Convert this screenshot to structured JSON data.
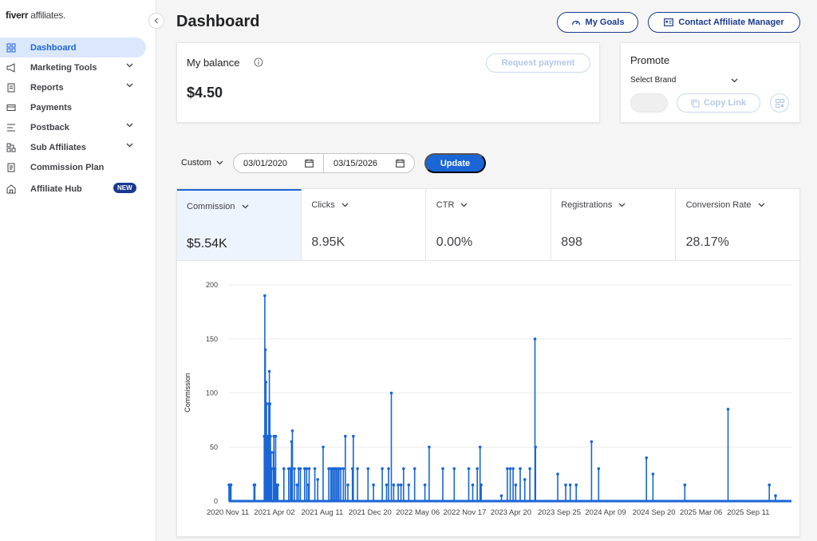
{
  "brand": {
    "name": "fiverr",
    "suffix": " affiliates."
  },
  "sidebar": {
    "items": [
      {
        "label": "Dashboard",
        "icon": "dashboard-icon",
        "active": true,
        "expandable": false
      },
      {
        "label": "Marketing Tools",
        "icon": "megaphone-icon",
        "expandable": true
      },
      {
        "label": "Reports",
        "icon": "report-icon",
        "expandable": true
      },
      {
        "label": "Payments",
        "icon": "payment-icon",
        "expandable": false
      },
      {
        "label": "Postback",
        "icon": "postback-icon",
        "expandable": true
      },
      {
        "label": "Sub Affiliates",
        "icon": "sub-affiliates-icon",
        "expandable": true
      },
      {
        "label": "Commission Plan",
        "icon": "commission-plan-icon",
        "expandable": false
      },
      {
        "label": "Affiliate Hub",
        "icon": "hub-icon",
        "expandable": false,
        "badge": "NEW"
      }
    ]
  },
  "header": {
    "title": "Dashboard",
    "goals_label": "My Goals",
    "contact_label": "Contact Affiliate Manager"
  },
  "balance": {
    "title": "My balance",
    "value": "$4.50",
    "request_label": "Request payment"
  },
  "promote": {
    "title": "Promote",
    "brand_select": "Select Brand",
    "copy_label": "Copy Link"
  },
  "filters": {
    "range": "Custom",
    "start_date": "03/01/2020",
    "end_date": "03/15/2026",
    "update_label": "Update"
  },
  "metrics": [
    {
      "label": "Commission",
      "value": "$5.54K",
      "active": true
    },
    {
      "label": "Clicks",
      "value": "8.95K"
    },
    {
      "label": "CTR",
      "value": "0.00%"
    },
    {
      "label": "Registrations",
      "value": "898"
    },
    {
      "label": "Conversion Rate",
      "value": "28.17%"
    }
  ],
  "colors": {
    "accent": "#1a66d6",
    "navy": "#1a3a8f",
    "active_bg": "#dbe7fb"
  },
  "chart_data": {
    "type": "line",
    "ylabel": "Commission",
    "ylim": [
      0,
      200
    ],
    "yticks": [
      0,
      50,
      100,
      150,
      200
    ],
    "grid": true,
    "xticks": [
      "2020 Nov 11",
      "2021 Apr 02",
      "2021 Aug 11",
      "2021 Dec 20",
      "2022 May 06",
      "2022 Nov 17",
      "2023 Apr 20",
      "2023 Sep 25",
      "2024 Apr 09",
      "2024 Sep 20",
      "2025 Mar 06",
      "2025 Sep 11"
    ],
    "x_range": [
      "2020-10-14",
      "2026-03-15"
    ],
    "series": [
      {
        "points": [
          [
            "2020-10-14",
            15
          ],
          [
            "2020-10-18",
            15
          ],
          [
            "2020-10-21",
            15
          ],
          [
            "2021-01-10",
            15
          ],
          [
            "2021-01-13",
            15
          ],
          [
            "2021-02-15",
            60
          ],
          [
            "2021-02-17",
            190
          ],
          [
            "2021-02-19",
            140
          ],
          [
            "2021-02-21",
            110
          ],
          [
            "2021-02-23",
            90
          ],
          [
            "2021-02-25",
            45
          ],
          [
            "2021-02-27",
            60
          ],
          [
            "2021-02-28",
            20
          ],
          [
            "2021-03-01",
            15
          ],
          [
            "2021-03-03",
            90
          ],
          [
            "2021-03-05",
            120
          ],
          [
            "2021-03-07",
            90
          ],
          [
            "2021-03-09",
            60
          ],
          [
            "2021-03-11",
            45
          ],
          [
            "2021-03-13",
            30
          ],
          [
            "2021-03-17",
            0
          ],
          [
            "2021-03-19",
            45
          ],
          [
            "2021-03-21",
            60
          ],
          [
            "2021-03-23",
            15
          ],
          [
            "2021-03-25",
            30
          ],
          [
            "2021-03-27",
            60
          ],
          [
            "2021-03-29",
            15
          ],
          [
            "2021-04-01",
            15
          ],
          [
            "2021-04-04",
            15
          ],
          [
            "2021-04-25",
            30
          ],
          [
            "2021-05-12",
            30
          ],
          [
            "2021-05-18",
            30
          ],
          [
            "2021-05-22",
            55
          ],
          [
            "2021-05-25",
            65
          ],
          [
            "2021-06-01",
            30
          ],
          [
            "2021-06-10",
            15
          ],
          [
            "2021-06-16",
            30
          ],
          [
            "2021-06-22",
            30
          ],
          [
            "2021-07-07",
            30
          ],
          [
            "2021-07-14",
            30
          ],
          [
            "2021-07-20",
            15
          ],
          [
            "2021-07-23",
            30
          ],
          [
            "2021-08-12",
            30
          ],
          [
            "2021-08-22",
            20
          ],
          [
            "2021-09-10",
            50
          ],
          [
            "2021-09-30",
            30
          ],
          [
            "2021-10-07",
            30
          ],
          [
            "2021-10-11",
            30
          ],
          [
            "2021-10-16",
            30
          ],
          [
            "2021-10-21",
            30
          ],
          [
            "2021-10-26",
            30
          ],
          [
            "2021-10-31",
            30
          ],
          [
            "2021-11-05",
            30
          ],
          [
            "2021-11-11",
            30
          ],
          [
            "2021-11-20",
            30
          ],
          [
            "2021-11-27",
            60
          ],
          [
            "2021-12-06",
            15
          ],
          [
            "2021-12-22",
            30
          ],
          [
            "2021-12-25",
            60
          ],
          [
            "2022-01-09",
            30
          ],
          [
            "2022-02-15",
            30
          ],
          [
            "2022-03-06",
            15
          ],
          [
            "2022-04-06",
            30
          ],
          [
            "2022-04-21",
            15
          ],
          [
            "2022-04-28",
            30
          ],
          [
            "2022-05-08",
            100
          ],
          [
            "2022-05-16",
            15
          ],
          [
            "2022-06-01",
            15
          ],
          [
            "2022-06-11",
            15
          ],
          [
            "2022-06-20",
            30
          ],
          [
            "2022-07-08",
            15
          ],
          [
            "2022-07-29",
            30
          ],
          [
            "2022-09-03",
            15
          ],
          [
            "2022-09-18",
            50
          ],
          [
            "2022-11-05",
            30
          ],
          [
            "2022-12-15",
            30
          ],
          [
            "2023-02-04",
            30
          ],
          [
            "2023-02-18",
            15
          ],
          [
            "2023-03-06",
            30
          ],
          [
            "2023-03-16",
            50
          ],
          [
            "2023-03-20",
            15
          ],
          [
            "2023-05-30",
            5
          ],
          [
            "2023-06-20",
            30
          ],
          [
            "2023-06-30",
            30
          ],
          [
            "2023-07-10",
            30
          ],
          [
            "2023-07-19",
            15
          ],
          [
            "2023-08-04",
            30
          ],
          [
            "2023-08-20",
            20
          ],
          [
            "2023-09-07",
            30
          ],
          [
            "2023-09-25",
            150
          ],
          [
            "2023-09-27",
            50
          ],
          [
            "2023-12-14",
            25
          ],
          [
            "2024-01-11",
            15
          ],
          [
            "2024-01-27",
            15
          ],
          [
            "2024-02-17",
            15
          ],
          [
            "2024-04-11",
            55
          ],
          [
            "2024-05-06",
            30
          ],
          [
            "2024-10-21",
            40
          ],
          [
            "2024-11-13",
            25
          ],
          [
            "2025-03-05",
            15
          ],
          [
            "2025-08-04",
            85
          ],
          [
            "2025-12-27",
            15
          ],
          [
            "2026-01-18",
            5
          ]
        ]
      }
    ]
  }
}
